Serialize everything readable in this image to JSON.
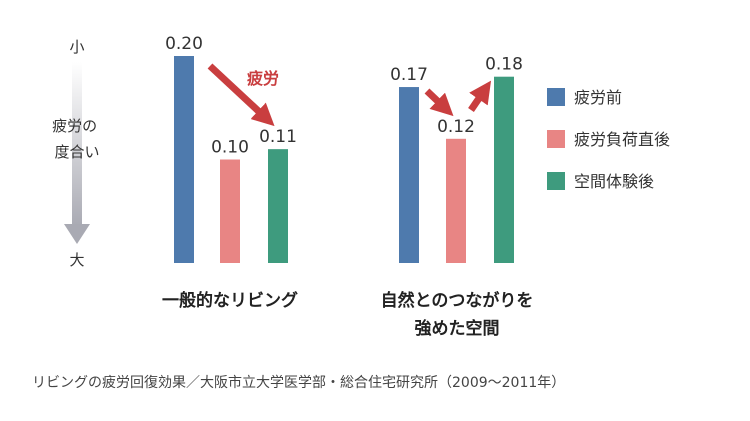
{
  "chart_data": {
    "type": "bar",
    "title": "",
    "ylabel": "疲労の度合い",
    "y_axis_top_label": "小",
    "y_axis_bottom_label": "大",
    "groups": [
      {
        "label_lines": [
          "一般的なリビング"
        ],
        "values": [
          0.2,
          0.1,
          0.11
        ],
        "value_labels": [
          "0.20",
          "0.10",
          "0.11"
        ]
      },
      {
        "label_lines": [
          "自然とのつながりを",
          "強めた空間"
        ],
        "values": [
          0.17,
          0.12,
          0.18
        ],
        "value_labels": [
          "0.17",
          "0.12",
          "0.18"
        ]
      }
    ],
    "series": [
      {
        "name": "疲労前",
        "color": "#4e7aad"
      },
      {
        "name": "疲労負荷直後",
        "color": "#e88584"
      },
      {
        "name": "空間体験後",
        "color": "#3e9b7e"
      }
    ],
    "annotation": "疲労",
    "annotation_color": "#c93e3f",
    "arrow_color": "#c93e3f",
    "axis_arrow_color": "#a9aab3",
    "legend_position": "right",
    "grid": false
  },
  "source": "リビングの疲労回復効果／大阪市立大学医学部・総合住宅研究所（2009〜2011年）"
}
